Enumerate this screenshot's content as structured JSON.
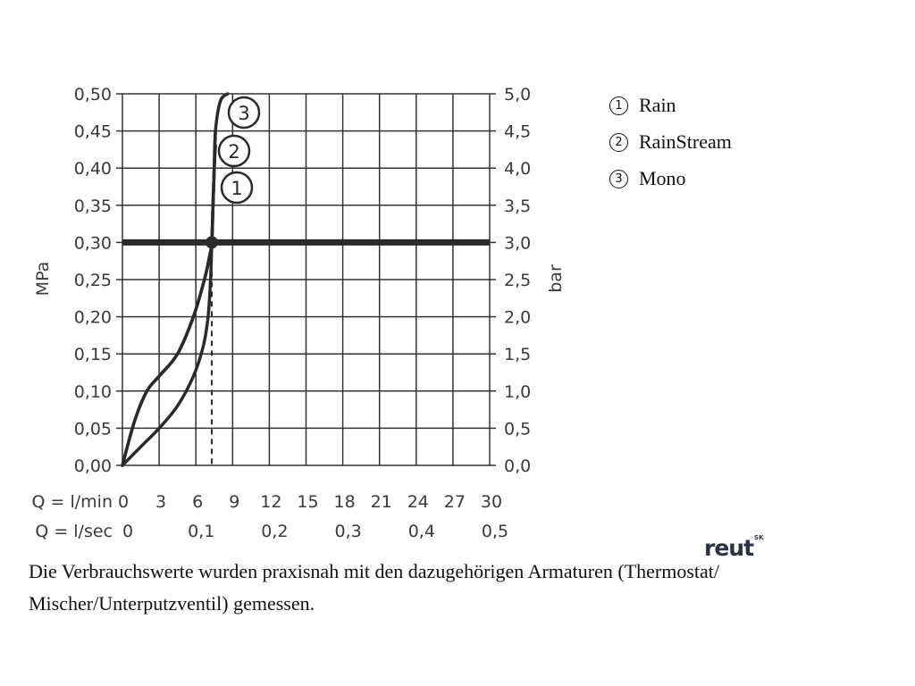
{
  "chart_data": {
    "type": "line",
    "x_rows": [
      {
        "label": "Q = l/min",
        "ticks": [
          "0",
          "3",
          "6",
          "9",
          "12",
          "15",
          "18",
          "21",
          "24",
          "27",
          "30"
        ]
      },
      {
        "label": "Q = l/sec",
        "ticks": [
          "0",
          "0,1",
          "0,2",
          "0,3",
          "0,4",
          "0,5"
        ]
      }
    ],
    "xlim": [
      0,
      30
    ],
    "y_left": {
      "label": "MPa",
      "ticks": [
        "0,00",
        "0,05",
        "0,10",
        "0,15",
        "0,20",
        "0,25",
        "0,30",
        "0,35",
        "0,40",
        "0,45",
        "0,50"
      ]
    },
    "y_right": {
      "label": "bar",
      "ticks": [
        "0,0",
        "0,5",
        "1,0",
        "1,5",
        "2,0",
        "2,5",
        "3,0",
        "3,5",
        "4,0",
        "4,5",
        "5,0"
      ]
    },
    "ylim": [
      0,
      0.5
    ],
    "grid": true,
    "reference_line": {
      "y": 0.3
    },
    "reference_point": {
      "x": 7.3,
      "y": 0.3
    },
    "reference_dashed_x": 7.3,
    "series": [
      {
        "id": "1",
        "name": "Rain",
        "x": [
          0,
          1.5,
          3,
          4.5,
          5.8,
          6.6,
          7.0,
          7.2,
          7.3,
          7.4,
          7.5,
          7.6
        ],
        "y": [
          0,
          0.025,
          0.05,
          0.08,
          0.12,
          0.16,
          0.2,
          0.25,
          0.3,
          0.35,
          0.4,
          0.43
        ]
      },
      {
        "id": "2",
        "name": "RainStream",
        "x": [
          0,
          1,
          2,
          3,
          4.5,
          5.8,
          6.7,
          7.1,
          7.3,
          7.4,
          7.5,
          7.6
        ],
        "y": [
          0,
          0.06,
          0.1,
          0.12,
          0.15,
          0.2,
          0.25,
          0.28,
          0.3,
          0.35,
          0.4,
          0.45
        ]
      },
      {
        "id": "3",
        "name": "Mono",
        "x": [
          0,
          1,
          2,
          3,
          4.5,
          5.8,
          6.7,
          7.1,
          7.3,
          7.4,
          7.5,
          7.6,
          8.0,
          8.6
        ],
        "y": [
          0,
          0.06,
          0.1,
          0.12,
          0.15,
          0.2,
          0.25,
          0.28,
          0.3,
          0.35,
          0.4,
          0.45,
          0.49,
          0.5
        ]
      }
    ]
  },
  "legend": [
    {
      "num": "1",
      "label": "Rain"
    },
    {
      "num": "2",
      "label": "RainStream"
    },
    {
      "num": "3",
      "label": "Mono"
    }
  ],
  "logo": {
    "text": "reut",
    "sup": "SK"
  },
  "note": "Die Verbrauchswerte wurden praxisnah mit den dazugehörigen Armaturen (Thermostat/ Mischer/Unterputzventil) gemessen."
}
